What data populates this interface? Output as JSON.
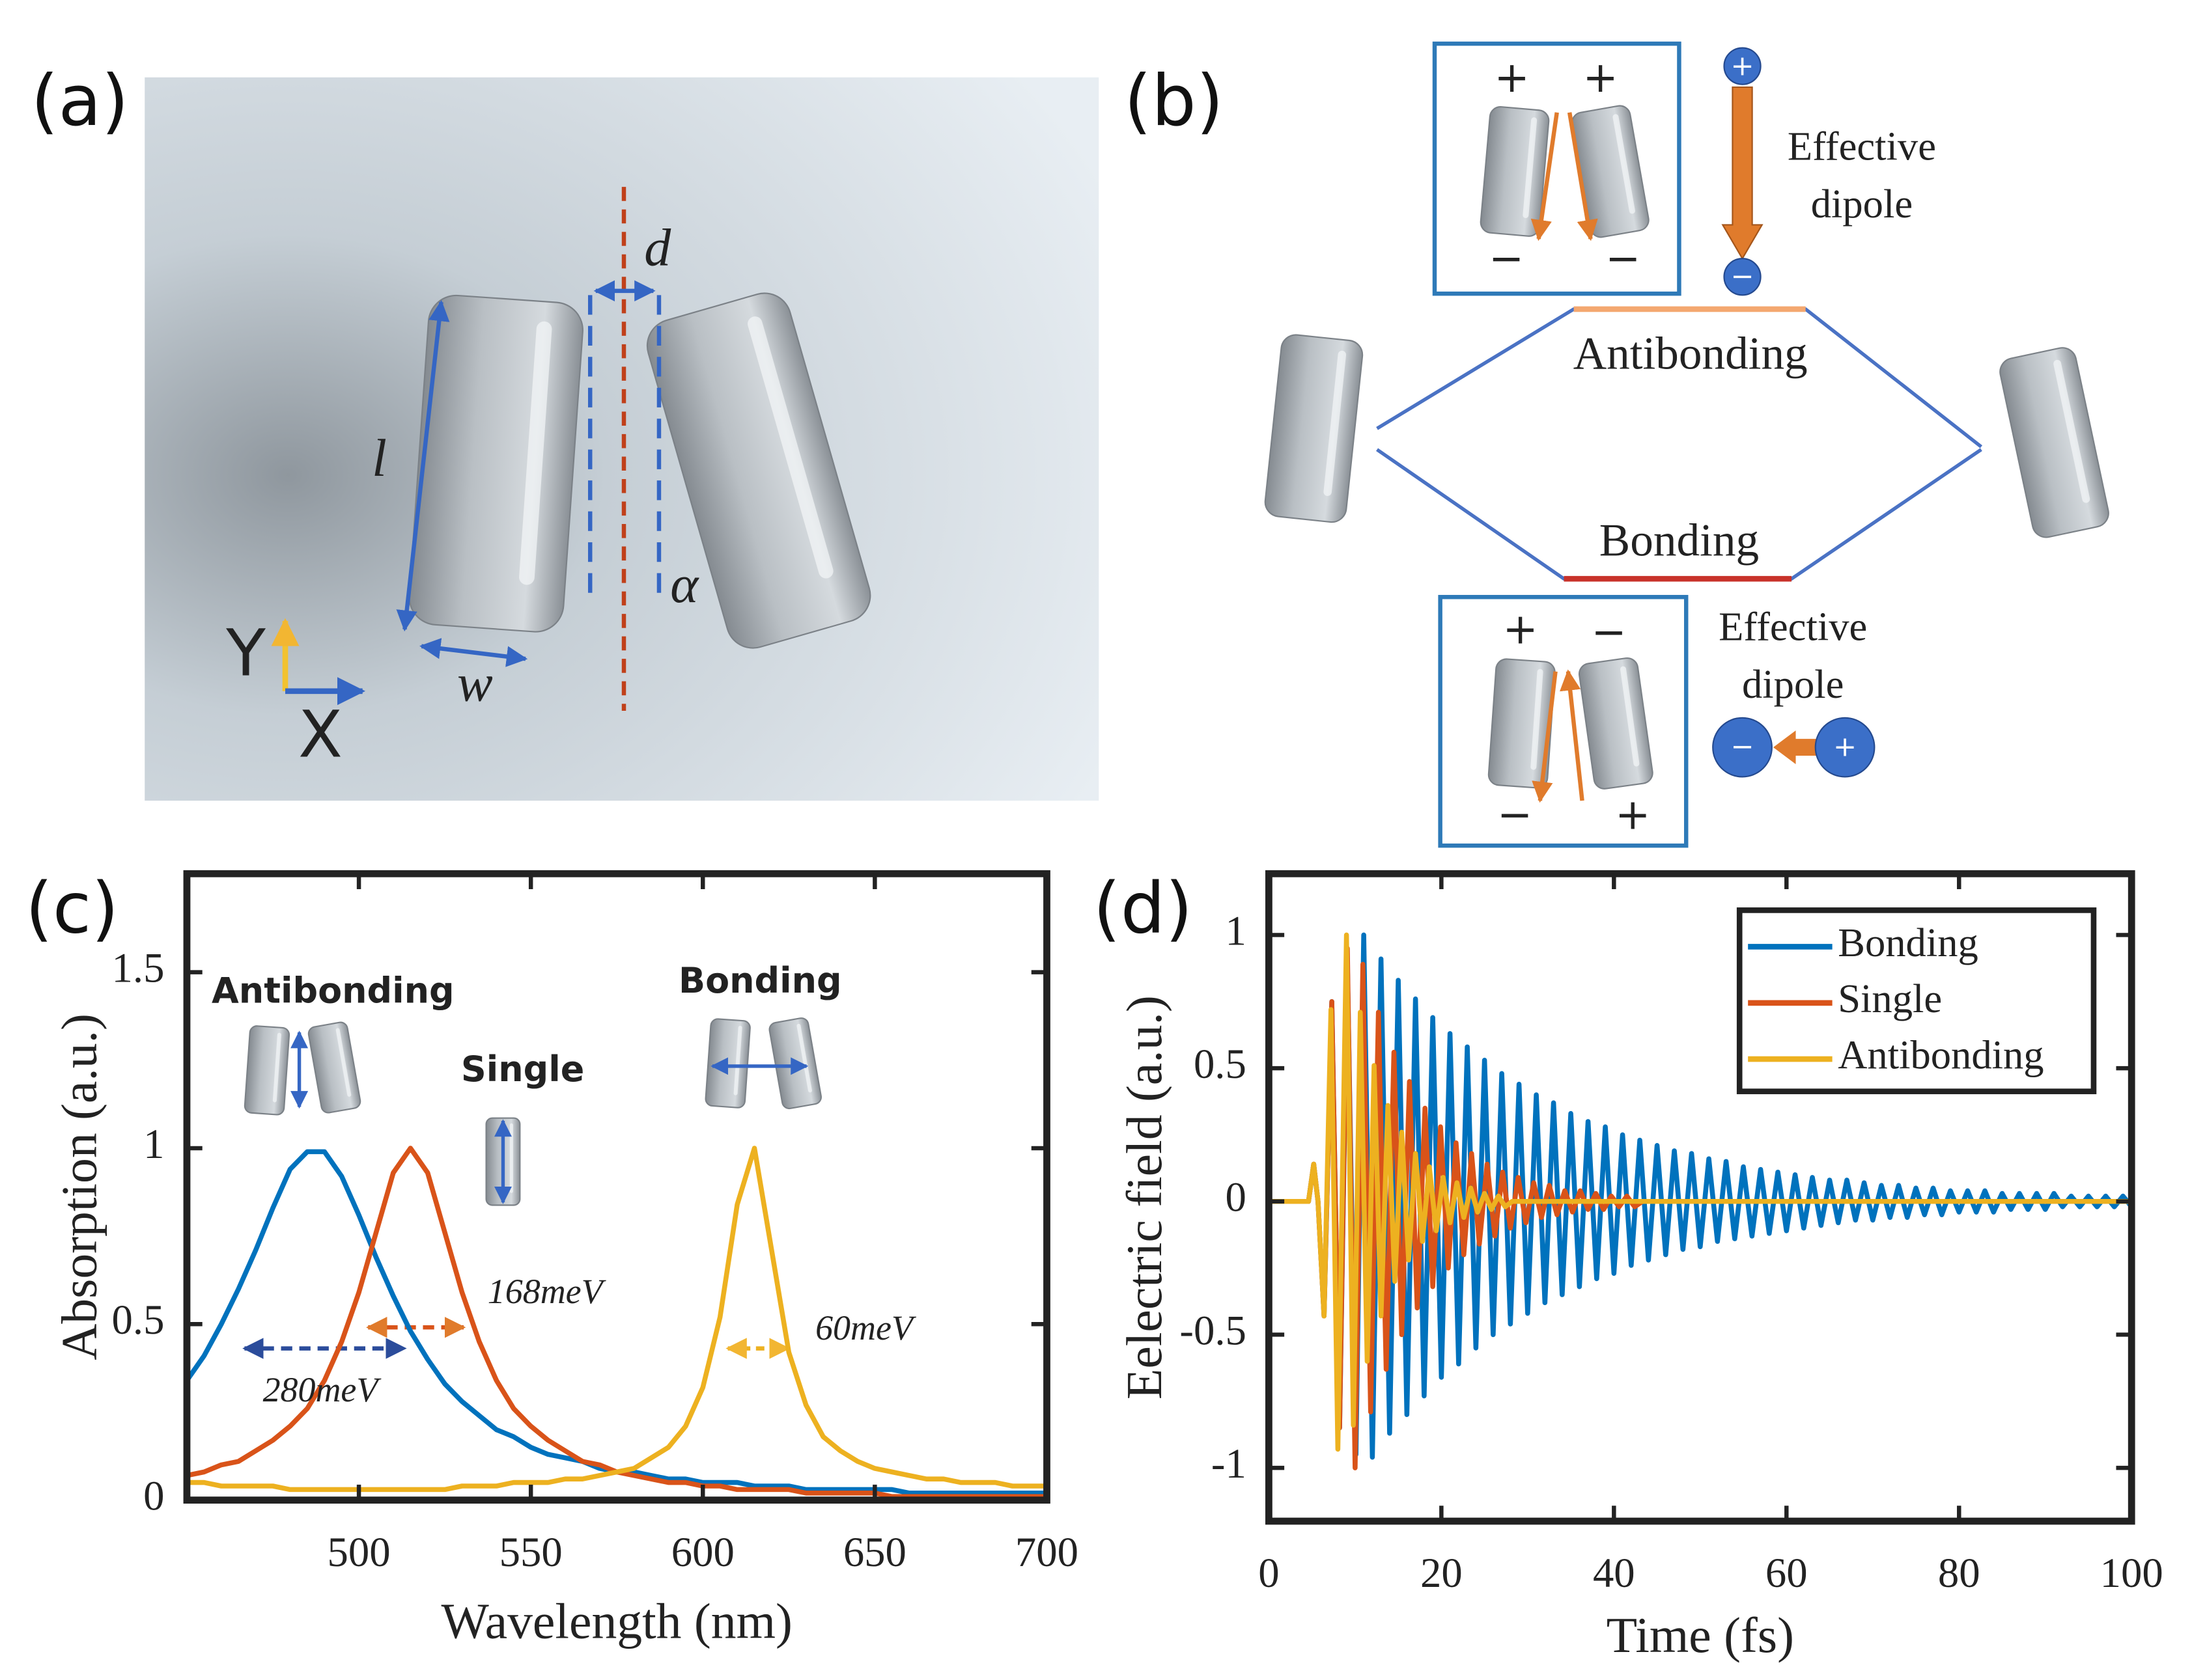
{
  "panels": {
    "a": {
      "label": "(a)",
      "symbols": [
        "d",
        "l",
        "w",
        "α"
      ],
      "axes": [
        "Y",
        "X"
      ]
    },
    "b": {
      "label": "(b)",
      "upper_box": {
        "signs": [
          "+",
          "+",
          "−",
          "−"
        ]
      },
      "upper_dipole": {
        "charges": [
          "+",
          "−"
        ],
        "caption": [
          "Effective",
          "dipole"
        ]
      },
      "levels": [
        "Antibonding",
        "Bonding"
      ],
      "lower_box": {
        "signs": [
          "+",
          "−",
          "−",
          "+"
        ]
      },
      "lower_dipole": {
        "charges": [
          "−",
          "+"
        ],
        "caption": [
          "Effective",
          "dipole"
        ]
      }
    }
  },
  "chart_data": [
    {
      "type": "line",
      "label": "(c)",
      "xlabel": "Wavelength (nm)",
      "ylabel": "Absorption (a.u.)",
      "x": [
        450,
        455,
        460,
        465,
        470,
        475,
        480,
        485,
        490,
        495,
        500,
        505,
        510,
        515,
        520,
        525,
        530,
        535,
        540,
        545,
        550,
        555,
        560,
        565,
        570,
        575,
        580,
        585,
        590,
        595,
        600,
        605,
        610,
        615,
        620,
        625,
        630,
        635,
        640,
        645,
        650,
        655,
        660,
        665,
        670,
        675,
        680,
        685,
        690,
        695,
        700
      ],
      "series": [
        {
          "name": "Antibonding",
          "color": "#0072bd",
          "values": [
            0.34,
            0.41,
            0.5,
            0.6,
            0.71,
            0.83,
            0.94,
            0.99,
            0.99,
            0.92,
            0.81,
            0.69,
            0.58,
            0.48,
            0.4,
            0.33,
            0.28,
            0.24,
            0.2,
            0.18,
            0.15,
            0.13,
            0.12,
            0.11,
            0.09,
            0.08,
            0.08,
            0.07,
            0.06,
            0.06,
            0.05,
            0.05,
            0.05,
            0.04,
            0.04,
            0.04,
            0.03,
            0.03,
            0.03,
            0.03,
            0.03,
            0.03,
            0.02,
            0.02,
            0.02,
            0.02,
            0.02,
            0.02,
            0.02,
            0.02,
            0.02
          ]
        },
        {
          "name": "Single",
          "color": "#d95319",
          "values": [
            0.07,
            0.08,
            0.1,
            0.11,
            0.14,
            0.17,
            0.21,
            0.26,
            0.34,
            0.45,
            0.59,
            0.76,
            0.93,
            1,
            0.93,
            0.76,
            0.59,
            0.45,
            0.34,
            0.26,
            0.21,
            0.17,
            0.14,
            0.11,
            0.1,
            0.08,
            0.07,
            0.06,
            0.05,
            0.05,
            0.04,
            0.04,
            0.03,
            0.03,
            0.03,
            0.03,
            0.02,
            0.02,
            0.02,
            0.02,
            0.02,
            0.01,
            0.01,
            0.01,
            0.01,
            0.01,
            0.01,
            0.01,
            0.01,
            0.01,
            0.01
          ]
        },
        {
          "name": "Bonding",
          "color": "#edb120",
          "values": [
            0.05,
            0.05,
            0.04,
            0.04,
            0.04,
            0.04,
            0.03,
            0.03,
            0.03,
            0.03,
            0.03,
            0.03,
            0.03,
            0.03,
            0.03,
            0.03,
            0.04,
            0.04,
            0.04,
            0.05,
            0.05,
            0.05,
            0.06,
            0.06,
            0.07,
            0.08,
            0.09,
            0.12,
            0.15,
            0.21,
            0.32,
            0.52,
            0.84,
            1,
            0.71,
            0.42,
            0.27,
            0.18,
            0.14,
            0.11,
            0.09,
            0.08,
            0.07,
            0.06,
            0.06,
            0.05,
            0.05,
            0.05,
            0.04,
            0.04,
            0.04
          ]
        }
      ],
      "annotations": [
        "280meV",
        "168meV",
        "60meV"
      ],
      "xlim": [
        450,
        700
      ],
      "xticks": [
        500,
        550,
        600,
        650,
        700
      ],
      "ylim": [
        0,
        1.78
      ],
      "yticks": [
        0,
        0.5,
        1,
        1.5
      ]
    },
    {
      "type": "line",
      "label": "(d)",
      "xlabel": "Time (fs)",
      "ylabel": "Eelectric field (a.u.)",
      "series": [
        {
          "name": "Bonding",
          "color": "#0072bd",
          "x": [
            0,
            4.6,
            5.2,
            5.7,
            6.4,
            7.3,
            8.2,
            9.1,
            10.1,
            11,
            12,
            13,
            14,
            15,
            16,
            17,
            18,
            19,
            20,
            21,
            22,
            23,
            24,
            25,
            26,
            27,
            28,
            29,
            30,
            31,
            32,
            33,
            34,
            35,
            36,
            37,
            38,
            39,
            40,
            41,
            42,
            43,
            44,
            45,
            46,
            47,
            48,
            49,
            50,
            51,
            52,
            53,
            54,
            55,
            56,
            57,
            58,
            59,
            60,
            61,
            62,
            63,
            64,
            65,
            66,
            67,
            68,
            69,
            70,
            71,
            72,
            73,
            74,
            75,
            76,
            77,
            78,
            79,
            80,
            81,
            82,
            83,
            84,
            85,
            86,
            87,
            88,
            89,
            90,
            91,
            92,
            93,
            94,
            95,
            96,
            97,
            98,
            99,
            100
          ],
          "values": [
            0,
            0,
            0.14,
            0,
            -0.43,
            0.75,
            -0.85,
            0.9,
            -0.95,
            1,
            -0.96,
            0.91,
            -0.87,
            0.83,
            -0.8,
            0.76,
            -0.73,
            0.69,
            -0.66,
            0.63,
            -0.61,
            0.58,
            -0.55,
            0.53,
            -0.5,
            0.48,
            -0.46,
            0.44,
            -0.42,
            0.4,
            -0.38,
            0.37,
            -0.35,
            0.33,
            -0.32,
            0.3,
            -0.29,
            0.28,
            -0.27,
            0.25,
            -0.24,
            0.23,
            -0.22,
            0.21,
            -0.2,
            0.19,
            -0.18,
            0.18,
            -0.17,
            0.16,
            -0.15,
            0.15,
            -0.14,
            0.13,
            -0.13,
            0.12,
            -0.12,
            0.11,
            -0.11,
            0.1,
            -0.1,
            0.09,
            -0.09,
            0.08,
            -0.08,
            0.08,
            -0.07,
            0.07,
            -0.07,
            0.06,
            -0.06,
            0.06,
            -0.06,
            0.05,
            -0.05,
            0.05,
            -0.05,
            0.04,
            -0.04,
            0.04,
            -0.04,
            0.04,
            -0.04,
            0.03,
            -0.03,
            0.03,
            -0.03,
            0.03,
            -0.03,
            0.03,
            -0.02,
            0.02,
            -0.02,
            0.02,
            -0.02,
            0.02,
            -0.02,
            0.02,
            -0.02
          ]
        },
        {
          "name": "Single",
          "color": "#d95319",
          "x": [
            0,
            4.6,
            5.2,
            5.7,
            6.4,
            7.3,
            8.2,
            9.1,
            10,
            10.9,
            11.8,
            12.7,
            13.6,
            14.5,
            15.4,
            16.3,
            17.2,
            18.1,
            19,
            19.9,
            20.8,
            21.7,
            22.6,
            23.5,
            24.4,
            25.3,
            26.2,
            27.1,
            28,
            28.9,
            29.8,
            30.7,
            31.6,
            32.5,
            33.4,
            34.3,
            35.2,
            36.1,
            37,
            37.9,
            38.8,
            39.7,
            40.6,
            41.5,
            42.4,
            43.3,
            100
          ],
          "values": [
            0,
            0,
            0.14,
            0,
            -0.43,
            0.75,
            -0.85,
            0.95,
            -1,
            0.89,
            -0.79,
            0.71,
            -0.63,
            0.56,
            -0.5,
            0.45,
            -0.4,
            0.35,
            -0.32,
            0.28,
            -0.25,
            0.22,
            -0.2,
            0.18,
            -0.16,
            0.14,
            -0.13,
            0.11,
            -0.1,
            0.09,
            -0.08,
            0.07,
            -0.06,
            0.06,
            -0.05,
            0.04,
            -0.04,
            0.04,
            -0.03,
            0.03,
            -0.03,
            0.02,
            -0.02,
            0.02,
            -0.02,
            0,
            0
          ]
        },
        {
          "name": "Antibonding",
          "color": "#edb120",
          "x": [
            0,
            4.6,
            5.2,
            5.7,
            6.4,
            7.2,
            8,
            9,
            9.8,
            10.6,
            11.4,
            12.2,
            13,
            13.8,
            14.6,
            15.4,
            16.2,
            17,
            17.8,
            18.6,
            19.4,
            20.2,
            21,
            21.8,
            22.6,
            23.4,
            24.2,
            25,
            25.8,
            26.6,
            27.4,
            28.2,
            100
          ],
          "values": [
            0,
            0,
            0.14,
            0,
            -0.43,
            0.72,
            -0.93,
            1,
            -0.84,
            0.71,
            -0.6,
            0.51,
            -0.43,
            0.36,
            -0.3,
            0.26,
            -0.22,
            0.18,
            -0.15,
            0.13,
            -0.11,
            0.09,
            -0.08,
            0.07,
            -0.06,
            0.05,
            -0.04,
            0.03,
            -0.03,
            0.02,
            -0.02,
            0,
            0
          ]
        }
      ],
      "legend": "upper right",
      "xlim": [
        0,
        100
      ],
      "xticks": [
        0,
        20,
        40,
        60,
        80,
        100
      ],
      "ylim": [
        -1.2,
        1.23
      ],
      "yticks": [
        -1,
        -0.5,
        0,
        0.5,
        1
      ]
    }
  ]
}
